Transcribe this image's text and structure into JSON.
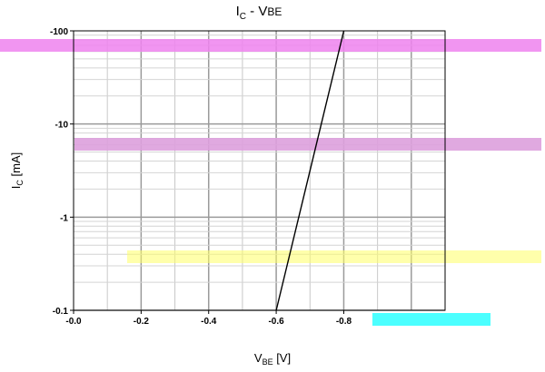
{
  "chart_data": {
    "type": "line",
    "title": {
      "base": "I",
      "sub": "C",
      "rest": " - V",
      "sub2": "BE"
    },
    "xlabel": {
      "base": "V",
      "sub": "BE",
      "rest": " [V]"
    },
    "ylabel": {
      "base": "I",
      "sub": "C",
      "rest": " [mA]"
    },
    "x_reversed": true,
    "xlim": [
      0.0,
      -1.1
    ],
    "y_scale": "log",
    "y_reversed": true,
    "ylim": [
      -0.1,
      -100
    ],
    "x_ticks": [
      0.0,
      -0.2,
      -0.4,
      -0.6,
      -0.8
    ],
    "x_tick_labels": [
      "-0.0",
      "-0.2",
      "-0.4",
      "-0.6",
      "-0.8"
    ],
    "y_ticks": [
      -0.1,
      -1,
      -10,
      -100
    ],
    "y_tick_labels": [
      "-0.1",
      "-1",
      "-10",
      "-100"
    ],
    "grid": true,
    "series": [
      {
        "color": "#000000",
        "points": [
          {
            "x": -0.6,
            "y": -0.1
          },
          {
            "x": -0.8,
            "y": -100
          }
        ]
      }
    ],
    "highlight_bands": [
      {
        "color": "#ee82ee",
        "opacity": 0.85
      },
      {
        "color": "#dda0dd",
        "opacity": 0.9
      },
      {
        "color": "#ffff66",
        "opacity": 0.55
      },
      {
        "color": "#00ffff",
        "opacity": 0.7
      }
    ]
  }
}
